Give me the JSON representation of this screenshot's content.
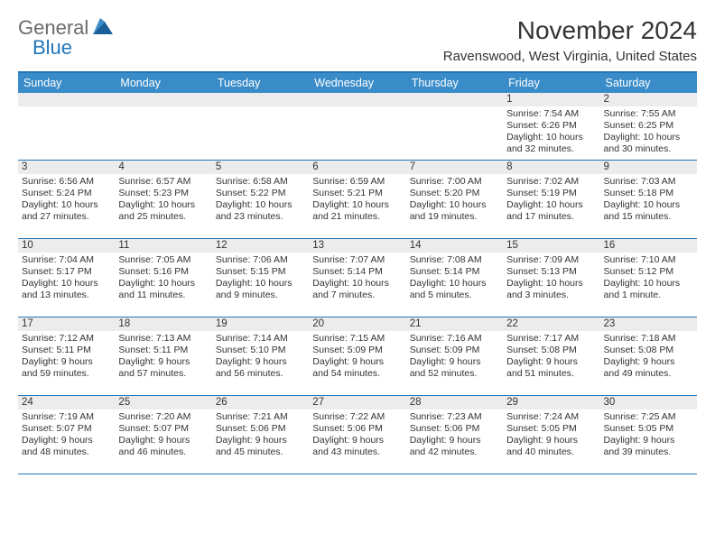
{
  "logo": {
    "text_general": "General",
    "text_blue": "Blue"
  },
  "header": {
    "month_title": "November 2024",
    "location": "Ravenswood, West Virginia, United States"
  },
  "weekdays": [
    "Sunday",
    "Monday",
    "Tuesday",
    "Wednesday",
    "Thursday",
    "Friday",
    "Saturday"
  ],
  "colors": {
    "header_bar": "#3a8cc9",
    "rule": "#2176b9",
    "day_band": "#ececec",
    "text": "#333333",
    "logo_gray": "#6b6b6b",
    "logo_blue": "#2176b9"
  },
  "weeks": [
    [
      null,
      null,
      null,
      null,
      null,
      {
        "n": "1",
        "sunrise": "Sunrise: 7:54 AM",
        "sunset": "Sunset: 6:26 PM",
        "daylight1": "Daylight: 10 hours",
        "daylight2": "and 32 minutes."
      },
      {
        "n": "2",
        "sunrise": "Sunrise: 7:55 AM",
        "sunset": "Sunset: 6:25 PM",
        "daylight1": "Daylight: 10 hours",
        "daylight2": "and 30 minutes."
      }
    ],
    [
      {
        "n": "3",
        "sunrise": "Sunrise: 6:56 AM",
        "sunset": "Sunset: 5:24 PM",
        "daylight1": "Daylight: 10 hours",
        "daylight2": "and 27 minutes."
      },
      {
        "n": "4",
        "sunrise": "Sunrise: 6:57 AM",
        "sunset": "Sunset: 5:23 PM",
        "daylight1": "Daylight: 10 hours",
        "daylight2": "and 25 minutes."
      },
      {
        "n": "5",
        "sunrise": "Sunrise: 6:58 AM",
        "sunset": "Sunset: 5:22 PM",
        "daylight1": "Daylight: 10 hours",
        "daylight2": "and 23 minutes."
      },
      {
        "n": "6",
        "sunrise": "Sunrise: 6:59 AM",
        "sunset": "Sunset: 5:21 PM",
        "daylight1": "Daylight: 10 hours",
        "daylight2": "and 21 minutes."
      },
      {
        "n": "7",
        "sunrise": "Sunrise: 7:00 AM",
        "sunset": "Sunset: 5:20 PM",
        "daylight1": "Daylight: 10 hours",
        "daylight2": "and 19 minutes."
      },
      {
        "n": "8",
        "sunrise": "Sunrise: 7:02 AM",
        "sunset": "Sunset: 5:19 PM",
        "daylight1": "Daylight: 10 hours",
        "daylight2": "and 17 minutes."
      },
      {
        "n": "9",
        "sunrise": "Sunrise: 7:03 AM",
        "sunset": "Sunset: 5:18 PM",
        "daylight1": "Daylight: 10 hours",
        "daylight2": "and 15 minutes."
      }
    ],
    [
      {
        "n": "10",
        "sunrise": "Sunrise: 7:04 AM",
        "sunset": "Sunset: 5:17 PM",
        "daylight1": "Daylight: 10 hours",
        "daylight2": "and 13 minutes."
      },
      {
        "n": "11",
        "sunrise": "Sunrise: 7:05 AM",
        "sunset": "Sunset: 5:16 PM",
        "daylight1": "Daylight: 10 hours",
        "daylight2": "and 11 minutes."
      },
      {
        "n": "12",
        "sunrise": "Sunrise: 7:06 AM",
        "sunset": "Sunset: 5:15 PM",
        "daylight1": "Daylight: 10 hours",
        "daylight2": "and 9 minutes."
      },
      {
        "n": "13",
        "sunrise": "Sunrise: 7:07 AM",
        "sunset": "Sunset: 5:14 PM",
        "daylight1": "Daylight: 10 hours",
        "daylight2": "and 7 minutes."
      },
      {
        "n": "14",
        "sunrise": "Sunrise: 7:08 AM",
        "sunset": "Sunset: 5:14 PM",
        "daylight1": "Daylight: 10 hours",
        "daylight2": "and 5 minutes."
      },
      {
        "n": "15",
        "sunrise": "Sunrise: 7:09 AM",
        "sunset": "Sunset: 5:13 PM",
        "daylight1": "Daylight: 10 hours",
        "daylight2": "and 3 minutes."
      },
      {
        "n": "16",
        "sunrise": "Sunrise: 7:10 AM",
        "sunset": "Sunset: 5:12 PM",
        "daylight1": "Daylight: 10 hours",
        "daylight2": "and 1 minute."
      }
    ],
    [
      {
        "n": "17",
        "sunrise": "Sunrise: 7:12 AM",
        "sunset": "Sunset: 5:11 PM",
        "daylight1": "Daylight: 9 hours",
        "daylight2": "and 59 minutes."
      },
      {
        "n": "18",
        "sunrise": "Sunrise: 7:13 AM",
        "sunset": "Sunset: 5:11 PM",
        "daylight1": "Daylight: 9 hours",
        "daylight2": "and 57 minutes."
      },
      {
        "n": "19",
        "sunrise": "Sunrise: 7:14 AM",
        "sunset": "Sunset: 5:10 PM",
        "daylight1": "Daylight: 9 hours",
        "daylight2": "and 56 minutes."
      },
      {
        "n": "20",
        "sunrise": "Sunrise: 7:15 AM",
        "sunset": "Sunset: 5:09 PM",
        "daylight1": "Daylight: 9 hours",
        "daylight2": "and 54 minutes."
      },
      {
        "n": "21",
        "sunrise": "Sunrise: 7:16 AM",
        "sunset": "Sunset: 5:09 PM",
        "daylight1": "Daylight: 9 hours",
        "daylight2": "and 52 minutes."
      },
      {
        "n": "22",
        "sunrise": "Sunrise: 7:17 AM",
        "sunset": "Sunset: 5:08 PM",
        "daylight1": "Daylight: 9 hours",
        "daylight2": "and 51 minutes."
      },
      {
        "n": "23",
        "sunrise": "Sunrise: 7:18 AM",
        "sunset": "Sunset: 5:08 PM",
        "daylight1": "Daylight: 9 hours",
        "daylight2": "and 49 minutes."
      }
    ],
    [
      {
        "n": "24",
        "sunrise": "Sunrise: 7:19 AM",
        "sunset": "Sunset: 5:07 PM",
        "daylight1": "Daylight: 9 hours",
        "daylight2": "and 48 minutes."
      },
      {
        "n": "25",
        "sunrise": "Sunrise: 7:20 AM",
        "sunset": "Sunset: 5:07 PM",
        "daylight1": "Daylight: 9 hours",
        "daylight2": "and 46 minutes."
      },
      {
        "n": "26",
        "sunrise": "Sunrise: 7:21 AM",
        "sunset": "Sunset: 5:06 PM",
        "daylight1": "Daylight: 9 hours",
        "daylight2": "and 45 minutes."
      },
      {
        "n": "27",
        "sunrise": "Sunrise: 7:22 AM",
        "sunset": "Sunset: 5:06 PM",
        "daylight1": "Daylight: 9 hours",
        "daylight2": "and 43 minutes."
      },
      {
        "n": "28",
        "sunrise": "Sunrise: 7:23 AM",
        "sunset": "Sunset: 5:06 PM",
        "daylight1": "Daylight: 9 hours",
        "daylight2": "and 42 minutes."
      },
      {
        "n": "29",
        "sunrise": "Sunrise: 7:24 AM",
        "sunset": "Sunset: 5:05 PM",
        "daylight1": "Daylight: 9 hours",
        "daylight2": "and 40 minutes."
      },
      {
        "n": "30",
        "sunrise": "Sunrise: 7:25 AM",
        "sunset": "Sunset: 5:05 PM",
        "daylight1": "Daylight: 9 hours",
        "daylight2": "and 39 minutes."
      }
    ]
  ]
}
